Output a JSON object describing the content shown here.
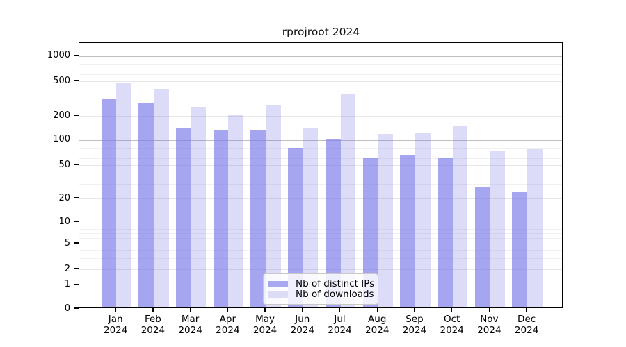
{
  "chart_data": {
    "type": "bar",
    "title": "rprojroot 2024",
    "categories": [
      "Jan 2024",
      "Feb 2024",
      "Mar 2024",
      "Apr 2024",
      "May 2024",
      "Jun 2024",
      "Jul 2024",
      "Aug 2024",
      "Sep 2024",
      "Oct 2024",
      "Nov 2024",
      "Dec 2024"
    ],
    "series": [
      {
        "name": "Nb of distinct IPs",
        "values": [
          310,
          280,
          140,
          130,
          132,
          80,
          104,
          62,
          65,
          60,
          27,
          24
        ]
      },
      {
        "name": "Nb of downloads",
        "values": [
          480,
          405,
          252,
          207,
          270,
          142,
          355,
          119,
          121,
          150,
          73,
          78
        ]
      }
    ],
    "yscale": "log1p",
    "yticks": [
      0,
      1,
      2,
      5,
      10,
      20,
      50,
      100,
      200,
      500,
      1000
    ],
    "ytick_labels": [
      "0",
      "1",
      "2",
      "5",
      "10",
      "20",
      "50",
      "100",
      "200",
      "500",
      "1000"
    ],
    "ylim": [
      0,
      1400
    ],
    "xlabel": "",
    "ylabel": "",
    "grid": "on",
    "legend_position": "inside-bottom-center"
  },
  "colors": {
    "bar_distinct_ips": "rgba(120,120,232,0.66)",
    "bar_downloads": "rgba(120,120,232,0.26)",
    "legend_swatch_ips": "#a8a8f0",
    "legend_swatch_downloads": "#dcdcf7",
    "grid_minor": "#f0f0f0",
    "grid_labeled": "#e7e7e7",
    "grid_decade": "#c0c0c0",
    "axis": "#000000",
    "background": "#ffffff"
  }
}
